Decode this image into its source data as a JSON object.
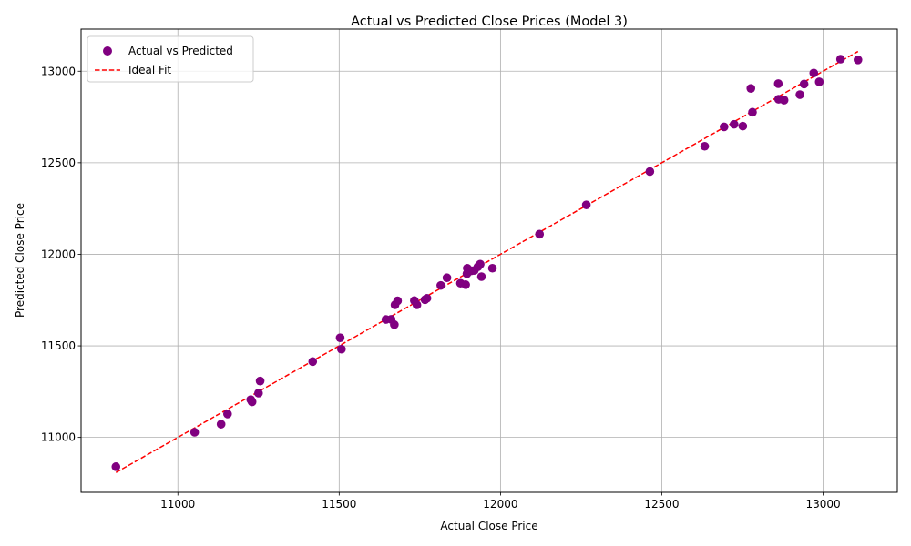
{
  "chart_data": {
    "type": "scatter",
    "title": "Actual vs Predicted Close Prices (Model 3)",
    "xlabel": "Actual Close Price",
    "ylabel": "Predicted Close Price",
    "xlim": [
      10700,
      13230
    ],
    "ylim": [
      10700,
      13230
    ],
    "xticks": [
      11000,
      11500,
      12000,
      12500,
      13000
    ],
    "yticks": [
      11000,
      11500,
      12000,
      12500,
      13000
    ],
    "grid": true,
    "legend_position": "top-left",
    "series": [
      {
        "name": "Actual vs Predicted",
        "kind": "scatter",
        "color": "#800080",
        "points": [
          [
            10808,
            10840
          ],
          [
            11052,
            11028
          ],
          [
            11134,
            11072
          ],
          [
            11154,
            11128
          ],
          [
            11226,
            11206
          ],
          [
            11230,
            11194
          ],
          [
            11250,
            11242
          ],
          [
            11255,
            11308
          ],
          [
            11418,
            11414
          ],
          [
            11503,
            11544
          ],
          [
            11507,
            11482
          ],
          [
            11645,
            11644
          ],
          [
            11661,
            11645
          ],
          [
            11671,
            11616
          ],
          [
            11673,
            11724
          ],
          [
            11681,
            11746
          ],
          [
            11733,
            11747
          ],
          [
            11741,
            11724
          ],
          [
            11766,
            11752
          ],
          [
            11772,
            11760
          ],
          [
            11815,
            11830
          ],
          [
            11834,
            11872
          ],
          [
            11876,
            11842
          ],
          [
            11892,
            11834
          ],
          [
            11896,
            11894
          ],
          [
            11897,
            11924
          ],
          [
            11910,
            11910
          ],
          [
            11919,
            11912
          ],
          [
            11930,
            11932
          ],
          [
            11937,
            11946
          ],
          [
            11941,
            11878
          ],
          [
            11975,
            11924
          ],
          [
            12121,
            12110
          ],
          [
            12266,
            12270
          ],
          [
            12463,
            12452
          ],
          [
            12633,
            12590
          ],
          [
            12693,
            12696
          ],
          [
            12724,
            12710
          ],
          [
            12751,
            12700
          ],
          [
            12776,
            12906
          ],
          [
            12781,
            12776
          ],
          [
            12861,
            12932
          ],
          [
            12862,
            12847
          ],
          [
            12879,
            12842
          ],
          [
            12928,
            12872
          ],
          [
            12941,
            12930
          ],
          [
            12971,
            12990
          ],
          [
            12988,
            12942
          ],
          [
            13054,
            13066
          ],
          [
            13108,
            13062
          ]
        ]
      },
      {
        "name": "Ideal Fit",
        "kind": "line",
        "style": "dashed",
        "color": "#ff0000",
        "x": [
          10808,
          13108
        ],
        "y": [
          10808,
          13108
        ]
      }
    ]
  }
}
